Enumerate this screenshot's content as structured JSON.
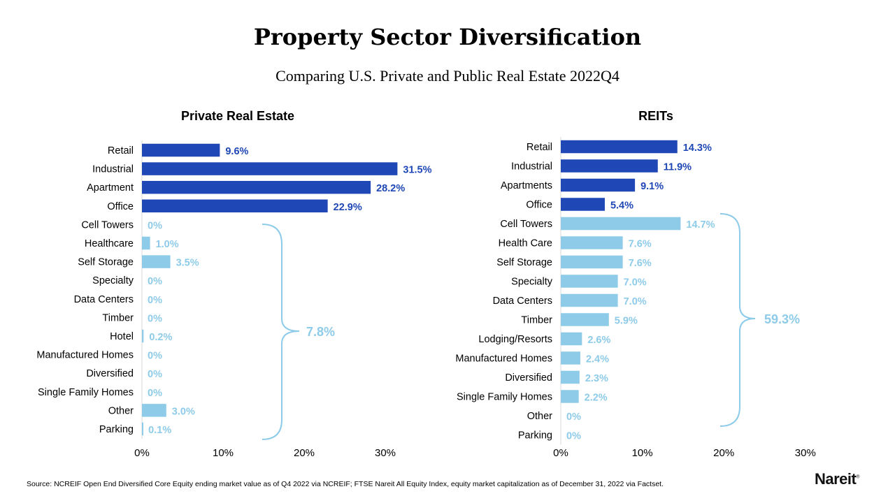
{
  "title": "Property Sector Diversification",
  "subtitle": "Comparing U.S. Private and Public Real Estate 2022Q4",
  "source": "Source: NCREIF Open End Diversified Core Equity ending market value as of Q4 2022 via NCREIF; FTSE Nareit All Equity Index, equity market capitalization as of December 31, 2022 via Factset.",
  "logo": "Nareit",
  "colors": {
    "dark": "#1f47b5",
    "light": "#8ecbe9",
    "bracket": "#8ecbe9"
  },
  "chart_data": [
    {
      "type": "bar",
      "orientation": "horizontal",
      "title": "Private Real Estate",
      "categories": [
        "Retail",
        "Industrial",
        "Apartment",
        "Office",
        "Cell Towers",
        "Healthcare",
        "Self Storage",
        "Specialty",
        "Data Centers",
        "Timber",
        "Hotel",
        "Manufactured Homes",
        "Diversified",
        "Single Family Homes",
        "Other",
        "Parking"
      ],
      "values": [
        9.6,
        31.5,
        28.2,
        22.9,
        0,
        1.0,
        3.5,
        0,
        0,
        0,
        0.2,
        0,
        0,
        0,
        3.0,
        0.1
      ],
      "labels": [
        "9.6%",
        "31.5%",
        "28.2%",
        "22.9%",
        "0%",
        "1.0%",
        "3.5%",
        "0%",
        "0%",
        "0%",
        "0.2%",
        "0%",
        "0%",
        "0%",
        "3.0%",
        "0.1%"
      ],
      "shades": [
        "dark",
        "dark",
        "dark",
        "dark",
        "light",
        "light",
        "light",
        "light",
        "light",
        "light",
        "light",
        "light",
        "light",
        "light",
        "light",
        "light"
      ],
      "xlim": [
        0,
        30
      ],
      "xticks": [
        "0%",
        "10%",
        "20%",
        "30%"
      ],
      "bracket_label": "7.8%"
    },
    {
      "type": "bar",
      "orientation": "horizontal",
      "title": "REITs",
      "categories": [
        "Retail",
        "Industrial",
        "Apartments",
        "Office",
        "Cell Towers",
        "Health Care",
        "Self Storage",
        "Specialty",
        "Data Centers",
        "Timber",
        "Lodging/Resorts",
        "Manufactured Homes",
        "Diversified",
        "Single Family Homes",
        "Other",
        "Parking"
      ],
      "values": [
        14.3,
        11.9,
        9.1,
        5.4,
        14.7,
        7.6,
        7.6,
        7.0,
        7.0,
        5.9,
        2.6,
        2.4,
        2.3,
        2.2,
        0,
        0
      ],
      "labels": [
        "14.3%",
        "11.9%",
        "9.1%",
        "5.4%",
        "14.7%",
        "7.6%",
        "7.6%",
        "7.0%",
        "7.0%",
        "5.9%",
        "2.6%",
        "2.4%",
        "2.3%",
        "2.2%",
        "0%",
        "0%"
      ],
      "shades": [
        "dark",
        "dark",
        "dark",
        "dark",
        "light",
        "light",
        "light",
        "light",
        "light",
        "light",
        "light",
        "light",
        "light",
        "light",
        "light",
        "light"
      ],
      "xlim": [
        0,
        30
      ],
      "xticks": [
        "0%",
        "10%",
        "20%",
        "30%"
      ],
      "bracket_label": "59.3%"
    }
  ]
}
